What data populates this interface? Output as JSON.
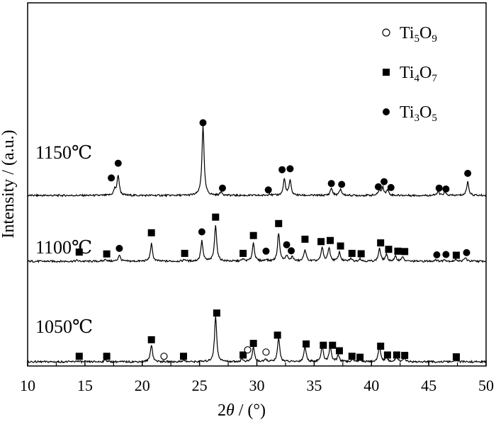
{
  "chart_data": {
    "type": "line",
    "xlabel_parts": [
      "2",
      "θ",
      " / (°)"
    ],
    "ylabel": "Intensity / (a.u.)",
    "xlim": [
      10,
      50
    ],
    "x_ticks": [
      10,
      15,
      20,
      25,
      30,
      35,
      40,
      45,
      50
    ],
    "y_ticks_shown": false,
    "grid": false,
    "legend_position": "top-right",
    "legend": [
      {
        "marker": "open-circle",
        "base": "Ti",
        "sub1": "5",
        "mid": "O",
        "sub2": "9"
      },
      {
        "marker": "filled-square",
        "base": "Ti",
        "sub1": "4",
        "mid": "O",
        "sub2": "7"
      },
      {
        "marker": "filled-circle",
        "base": "Ti",
        "sub1": "3",
        "mid": "O",
        "sub2": "5"
      }
    ],
    "series": [
      {
        "name": "1150℃",
        "peaks": [
          [
            17.6,
            0.3
          ],
          [
            17.9,
            1.1
          ],
          [
            25.3,
            3.8
          ],
          [
            26.9,
            0.2
          ],
          [
            31.1,
            0.1
          ],
          [
            32.4,
            0.9
          ],
          [
            32.9,
            0.8
          ],
          [
            36.5,
            0.4
          ],
          [
            37.3,
            0.35
          ],
          [
            40.7,
            0.3
          ],
          [
            41.0,
            0.4
          ],
          [
            41.4,
            0.3
          ],
          [
            45.8,
            0.2
          ],
          [
            46.4,
            0.18
          ],
          [
            48.4,
            0.75
          ]
        ],
        "markers": [
          {
            "x": 17.3,
            "y": 1.1,
            "phase": "Ti3O5"
          },
          {
            "x": 17.9,
            "y": 1.9,
            "phase": "Ti3O5"
          },
          {
            "x": 25.3,
            "y": 4.1,
            "phase": "Ti3O5"
          },
          {
            "x": 27.0,
            "y": 0.55,
            "phase": "Ti3O5"
          },
          {
            "x": 31.0,
            "y": 0.45,
            "phase": "Ti3O5"
          },
          {
            "x": 32.2,
            "y": 1.55,
            "phase": "Ti3O5"
          },
          {
            "x": 32.9,
            "y": 1.6,
            "phase": "Ti3O5"
          },
          {
            "x": 36.5,
            "y": 0.8,
            "phase": "Ti3O5"
          },
          {
            "x": 37.4,
            "y": 0.75,
            "phase": "Ti3O5"
          },
          {
            "x": 40.6,
            "y": 0.62,
            "phase": "Ti3O5"
          },
          {
            "x": 41.1,
            "y": 0.9,
            "phase": "Ti3O5"
          },
          {
            "x": 41.7,
            "y": 0.58,
            "phase": "Ti3O5"
          },
          {
            "x": 45.9,
            "y": 0.55,
            "phase": "Ti3O5"
          },
          {
            "x": 46.5,
            "y": 0.5,
            "phase": "Ti3O5"
          },
          {
            "x": 48.4,
            "y": 1.35,
            "phase": "Ti3O5"
          }
        ]
      },
      {
        "name": "1100℃",
        "peaks": [
          [
            14.3,
            0.05
          ],
          [
            16.8,
            0.12
          ],
          [
            18.0,
            0.35
          ],
          [
            20.8,
            0.95
          ],
          [
            23.7,
            0.1
          ],
          [
            25.2,
            1.1
          ],
          [
            26.4,
            2.0
          ],
          [
            28.8,
            0.12
          ],
          [
            29.7,
            1.0
          ],
          [
            30.8,
            0.1
          ],
          [
            31.9,
            1.55
          ],
          [
            32.6,
            0.3
          ],
          [
            33.1,
            0.25
          ],
          [
            34.2,
            0.65
          ],
          [
            35.7,
            0.75
          ],
          [
            36.3,
            0.75
          ],
          [
            37.2,
            0.5
          ],
          [
            38.2,
            0.15
          ],
          [
            39.0,
            0.15
          ],
          [
            40.7,
            0.7
          ],
          [
            41.3,
            0.35
          ],
          [
            42.1,
            0.25
          ],
          [
            42.7,
            0.25
          ],
          [
            45.6,
            0.1
          ],
          [
            46.4,
            0.1
          ],
          [
            47.4,
            0.1
          ],
          [
            48.2,
            0.2
          ]
        ],
        "markers": [
          {
            "x": 14.5,
            "y": 0.65,
            "phase": "Ti4O7"
          },
          {
            "x": 16.9,
            "y": 0.55,
            "phase": "Ti4O7"
          },
          {
            "x": 18.0,
            "y": 0.85,
            "phase": "Ti3O5"
          },
          {
            "x": 20.8,
            "y": 1.7,
            "phase": "Ti4O7"
          },
          {
            "x": 23.7,
            "y": 0.58,
            "phase": "Ti4O7"
          },
          {
            "x": 25.2,
            "y": 1.75,
            "phase": "Ti3O5"
          },
          {
            "x": 26.4,
            "y": 2.55,
            "phase": "Ti4O7"
          },
          {
            "x": 28.8,
            "y": 0.58,
            "phase": "Ti4O7"
          },
          {
            "x": 29.7,
            "y": 1.55,
            "phase": "Ti4O7"
          },
          {
            "x": 30.8,
            "y": 0.7,
            "phase": "Ti3O5"
          },
          {
            "x": 31.9,
            "y": 2.2,
            "phase": "Ti4O7"
          },
          {
            "x": 32.6,
            "y": 1.05,
            "phase": "Ti3O5"
          },
          {
            "x": 33.0,
            "y": 0.72,
            "phase": "Ti3O5"
          },
          {
            "x": 34.2,
            "y": 1.35,
            "phase": "Ti4O7"
          },
          {
            "x": 35.6,
            "y": 1.22,
            "phase": "Ti4O7"
          },
          {
            "x": 36.4,
            "y": 1.28,
            "phase": "Ti4O7"
          },
          {
            "x": 37.3,
            "y": 0.98,
            "phase": "Ti4O7"
          },
          {
            "x": 38.3,
            "y": 0.58,
            "phase": "Ti4O7"
          },
          {
            "x": 39.1,
            "y": 0.56,
            "phase": "Ti4O7"
          },
          {
            "x": 40.8,
            "y": 1.15,
            "phase": "Ti4O7"
          },
          {
            "x": 41.5,
            "y": 0.8,
            "phase": "Ti4O7"
          },
          {
            "x": 42.3,
            "y": 0.7,
            "phase": "Ti4O7"
          },
          {
            "x": 42.9,
            "y": 0.68,
            "phase": "Ti4O7"
          },
          {
            "x": 45.7,
            "y": 0.5,
            "phase": "Ti3O5"
          },
          {
            "x": 46.5,
            "y": 0.52,
            "phase": "Ti3O5"
          },
          {
            "x": 47.4,
            "y": 0.48,
            "phase": "Ti4O7"
          },
          {
            "x": 48.3,
            "y": 0.62,
            "phase": "Ti3O5"
          }
        ]
      },
      {
        "name": "1050℃",
        "peaks": [
          [
            14.3,
            0.05
          ],
          [
            16.8,
            0.12
          ],
          [
            20.8,
            0.95
          ],
          [
            23.6,
            0.1
          ],
          [
            26.4,
            2.5
          ],
          [
            28.7,
            0.15
          ],
          [
            29.7,
            0.8
          ],
          [
            30.8,
            0.12
          ],
          [
            31.9,
            1.3
          ],
          [
            34.2,
            0.85
          ],
          [
            35.7,
            0.85
          ],
          [
            36.4,
            0.85
          ],
          [
            37.1,
            0.35
          ],
          [
            38.4,
            0.15
          ],
          [
            39.0,
            0.15
          ],
          [
            40.7,
            0.9
          ],
          [
            41.3,
            0.25
          ],
          [
            42.2,
            0.3
          ],
          [
            42.9,
            0.2
          ],
          [
            47.4,
            0.1
          ]
        ],
        "markers": [
          {
            "x": 14.5,
            "y": 0.45,
            "phase": "Ti4O7"
          },
          {
            "x": 16.9,
            "y": 0.45,
            "phase": "Ti4O7"
          },
          {
            "x": 20.8,
            "y": 1.35,
            "phase": "Ti4O7"
          },
          {
            "x": 21.9,
            "y": 0.45,
            "phase": "Ti5O9"
          },
          {
            "x": 23.6,
            "y": 0.45,
            "phase": "Ti4O7"
          },
          {
            "x": 28.8,
            "y": 0.52,
            "phase": "Ti4O7"
          },
          {
            "x": 29.2,
            "y": 0.8,
            "phase": "Ti5O9"
          },
          {
            "x": 29.7,
            "y": 1.15,
            "phase": "Ti4O7"
          },
          {
            "x": 30.8,
            "y": 0.68,
            "phase": "Ti5O9"
          },
          {
            "x": 31.8,
            "y": 1.6,
            "phase": "Ti4O7"
          },
          {
            "x": 26.5,
            "y": 2.8,
            "phase": "Ti4O7"
          },
          {
            "x": 34.3,
            "y": 1.12,
            "phase": "Ti4O7"
          },
          {
            "x": 35.8,
            "y": 1.05,
            "phase": "Ti4O7"
          },
          {
            "x": 36.6,
            "y": 1.05,
            "phase": "Ti4O7"
          },
          {
            "x": 37.2,
            "y": 0.75,
            "phase": "Ti4O7"
          },
          {
            "x": 38.3,
            "y": 0.45,
            "phase": "Ti4O7"
          },
          {
            "x": 39.0,
            "y": 0.4,
            "phase": "Ti4O7"
          },
          {
            "x": 40.8,
            "y": 1.0,
            "phase": "Ti4O7"
          },
          {
            "x": 41.4,
            "y": 0.52,
            "phase": "Ti4O7"
          },
          {
            "x": 42.2,
            "y": 0.52,
            "phase": "Ti4O7"
          },
          {
            "x": 42.9,
            "y": 0.5,
            "phase": "Ti4O7"
          },
          {
            "x": 47.4,
            "y": 0.42,
            "phase": "Ti4O7"
          }
        ]
      }
    ]
  }
}
